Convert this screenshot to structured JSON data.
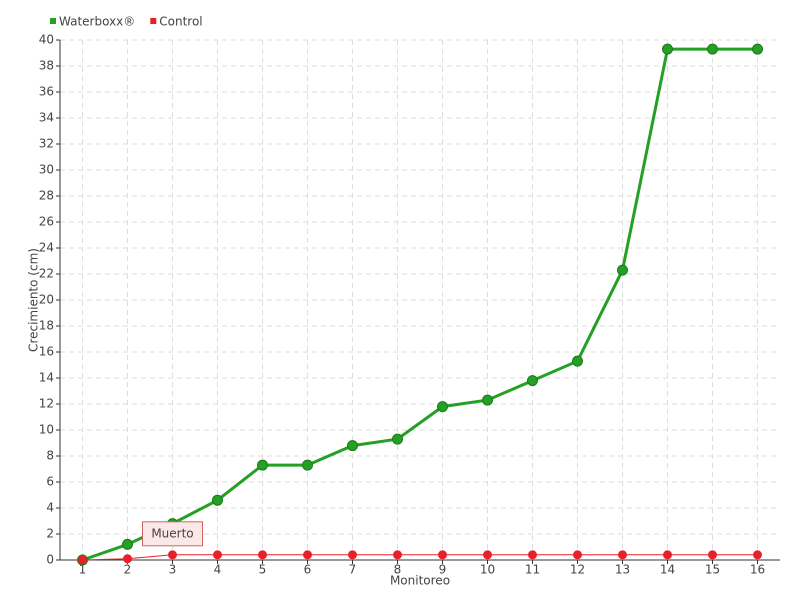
{
  "chart_data": {
    "type": "line",
    "x_label": "Monitoreo",
    "y_label": "Crecimiento (cm)",
    "categories": [
      "1",
      "2",
      "3",
      "4",
      "5",
      "6",
      "7",
      "8",
      "9",
      "10",
      "11",
      "12",
      "13",
      "14",
      "15",
      "16"
    ],
    "series": [
      {
        "name": "Waterboxx®",
        "color": "#24a024",
        "values": [
          0,
          1.2,
          2.8,
          4.6,
          7.3,
          7.3,
          8.8,
          9.3,
          11.8,
          12.3,
          13.8,
          15.3,
          22.3,
          39.3,
          39.3,
          39.3
        ]
      },
      {
        "name": "Control",
        "color": "#e8202a",
        "values": [
          0,
          0.1,
          0.4,
          0.4,
          0.4,
          0.4,
          0.4,
          0.4,
          0.4,
          0.4,
          0.4,
          0.4,
          0.4,
          0.4,
          0.4,
          0.4
        ]
      }
    ],
    "annotations": [
      "Muerto"
    ],
    "ylim": [
      0,
      40
    ],
    "yticks": [
      0,
      2,
      4,
      6,
      8,
      10,
      12,
      14,
      16,
      18,
      20,
      22,
      24,
      26,
      28,
      30,
      32,
      34,
      36,
      38,
      40
    ],
    "grid": true,
    "legend": "top-left"
  }
}
